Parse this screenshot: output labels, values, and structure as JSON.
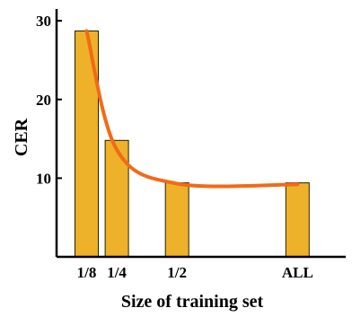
{
  "chart_data": {
    "type": "bar",
    "categories": [
      "1/8",
      "1/4",
      "1/2",
      "ALL"
    ],
    "category_positions": [
      0.125,
      0.25,
      0.5,
      1.0
    ],
    "values": [
      28.7,
      14.8,
      9.4,
      9.4
    ],
    "trend_curve": [
      [
        0.125,
        28.7
      ],
      [
        0.25,
        13.6
      ],
      [
        0.5,
        9.3
      ],
      [
        1.0,
        9.2
      ]
    ],
    "xlabel": "Size of training set",
    "ylabel": "CER",
    "yticks": [
      10,
      20,
      30
    ],
    "ylim": [
      0,
      31.5
    ],
    "xlim": [
      0,
      1.2
    ],
    "grid": false,
    "colors": {
      "bar_fill": "#EDB12A",
      "bar_edge": "#2a1f00",
      "curve": "#F26A16",
      "axis": "#000000"
    }
  }
}
